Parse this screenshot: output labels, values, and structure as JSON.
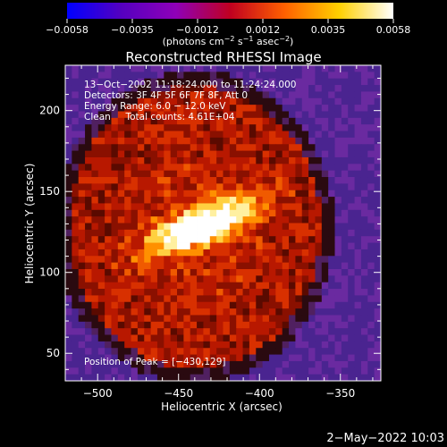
{
  "colorbar": {
    "tick_labels": [
      "−0.0058",
      "−0.0035",
      "−0.0012",
      "0.0012",
      "0.0035",
      "0.0058"
    ],
    "units_prefix": "(photons cm",
    "units_exp1": "−2",
    "units_mid1": " s",
    "units_exp2": "−1",
    "units_mid2": " asec",
    "units_exp3": "−2",
    "units_suffix": ")"
  },
  "annotations": {
    "time_range": "13−Oct−2002 11:18:24.000 to 11:24:24.000",
    "detectors": "Detectors: 3F 4F 5F 6F 7F 8F, Att 0",
    "energy": "Energy Range: 6.0 − 12.0 keV",
    "clean": "Clean     Total counts: 4.61E+04",
    "peak": "Position of Peak = [−430,129]"
  },
  "footer": {
    "date": "2−May−2022 10:03"
  },
  "chart_data": {
    "type": "heatmap",
    "title": "Reconstructed RHESSI Image",
    "xlabel": "Heliocentric X (arcsec)",
    "ylabel": "Heliocentric Y (arcsec)",
    "xlim": [
      -520,
      -325
    ],
    "ylim": [
      33,
      228
    ],
    "x_ticks": [
      -500,
      -450,
      -400,
      -350
    ],
    "x_tick_labels": [
      "−500",
      "−450",
      "−400",
      "−350"
    ],
    "y_ticks": [
      50,
      100,
      150,
      200
    ],
    "y_tick_labels": [
      "50",
      "100",
      "150",
      "200"
    ],
    "color_range": [
      -0.0058,
      0.0058
    ],
    "colormap": [
      "#0000ff",
      "#5500c0",
      "#8f00b8",
      "#c00020",
      "#ff6000",
      "#ffd000",
      "#ffffff"
    ],
    "peak": [
      -430,
      129
    ],
    "background_color": "#5a2aa0"
  }
}
